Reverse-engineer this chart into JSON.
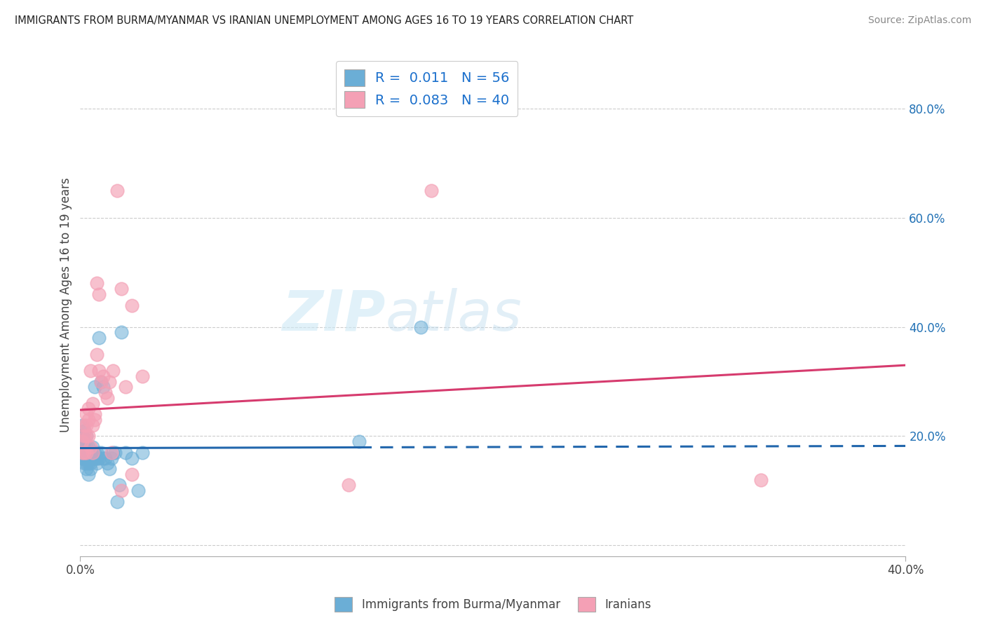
{
  "title": "IMMIGRANTS FROM BURMA/MYANMAR VS IRANIAN UNEMPLOYMENT AMONG AGES 16 TO 19 YEARS CORRELATION CHART",
  "source": "Source: ZipAtlas.com",
  "ylabel": "Unemployment Among Ages 16 to 19 years",
  "xlim": [
    0.0,
    0.4
  ],
  "ylim": [
    -0.02,
    0.9
  ],
  "right_yticks": [
    0.0,
    0.2,
    0.4,
    0.6,
    0.8
  ],
  "right_yticklabels": [
    "",
    "20.0%",
    "40.0%",
    "60.0%",
    "80.0%"
  ],
  "xticks": [
    0.0,
    0.4
  ],
  "xticklabels": [
    "0.0%",
    "40.0%"
  ],
  "blue_R": "0.011",
  "blue_N": "56",
  "pink_R": "0.083",
  "pink_N": "40",
  "blue_color": "#6baed6",
  "pink_color": "#f4a0b5",
  "blue_line_color": "#2166ac",
  "pink_line_color": "#d63b6e",
  "blue_scatter_x": [
    0.001,
    0.001,
    0.001,
    0.001,
    0.001,
    0.002,
    0.002,
    0.002,
    0.002,
    0.002,
    0.002,
    0.003,
    0.003,
    0.003,
    0.003,
    0.003,
    0.003,
    0.004,
    0.004,
    0.004,
    0.004,
    0.004,
    0.005,
    0.005,
    0.005,
    0.005,
    0.006,
    0.006,
    0.006,
    0.007,
    0.007,
    0.007,
    0.008,
    0.008,
    0.008,
    0.009,
    0.009,
    0.01,
    0.01,
    0.011,
    0.011,
    0.012,
    0.013,
    0.014,
    0.015,
    0.016,
    0.017,
    0.018,
    0.019,
    0.02,
    0.022,
    0.025,
    0.028,
    0.03,
    0.135,
    0.165
  ],
  "blue_scatter_y": [
    0.17,
    0.19,
    0.2,
    0.22,
    0.16,
    0.17,
    0.18,
    0.19,
    0.21,
    0.16,
    0.15,
    0.18,
    0.2,
    0.17,
    0.16,
    0.15,
    0.14,
    0.17,
    0.18,
    0.16,
    0.15,
    0.13,
    0.17,
    0.16,
    0.15,
    0.14,
    0.18,
    0.17,
    0.16,
    0.17,
    0.16,
    0.29,
    0.17,
    0.16,
    0.15,
    0.16,
    0.38,
    0.3,
    0.17,
    0.29,
    0.16,
    0.16,
    0.15,
    0.14,
    0.16,
    0.17,
    0.17,
    0.08,
    0.11,
    0.39,
    0.17,
    0.16,
    0.1,
    0.17,
    0.19,
    0.4
  ],
  "pink_scatter_x": [
    0.001,
    0.001,
    0.002,
    0.002,
    0.002,
    0.003,
    0.003,
    0.003,
    0.003,
    0.004,
    0.004,
    0.004,
    0.005,
    0.005,
    0.006,
    0.006,
    0.006,
    0.007,
    0.007,
    0.008,
    0.008,
    0.009,
    0.009,
    0.01,
    0.011,
    0.012,
    0.013,
    0.014,
    0.016,
    0.018,
    0.02,
    0.022,
    0.025,
    0.03,
    0.13,
    0.17,
    0.33,
    0.015,
    0.02,
    0.025
  ],
  "pink_scatter_y": [
    0.17,
    0.19,
    0.2,
    0.22,
    0.17,
    0.2,
    0.24,
    0.22,
    0.17,
    0.2,
    0.25,
    0.23,
    0.32,
    0.18,
    0.22,
    0.26,
    0.17,
    0.24,
    0.23,
    0.35,
    0.48,
    0.46,
    0.32,
    0.3,
    0.31,
    0.28,
    0.27,
    0.3,
    0.32,
    0.65,
    0.47,
    0.29,
    0.44,
    0.31,
    0.11,
    0.65,
    0.12,
    0.17,
    0.1,
    0.13
  ],
  "blue_line_x0": 0.0,
  "blue_line_x_solid_end": 0.135,
  "blue_line_x1": 0.4,
  "blue_line_y0": 0.178,
  "blue_line_y1": 0.182,
  "pink_line_x0": 0.0,
  "pink_line_x1": 0.4,
  "pink_line_y0": 0.248,
  "pink_line_y1": 0.33,
  "background_color": "#ffffff",
  "grid_color": "#cccccc",
  "watermark_zip": "ZIP",
  "watermark_atlas": "atlas",
  "legend_blue_label": "Immigrants from Burma/Myanmar",
  "legend_pink_label": "Iranians"
}
